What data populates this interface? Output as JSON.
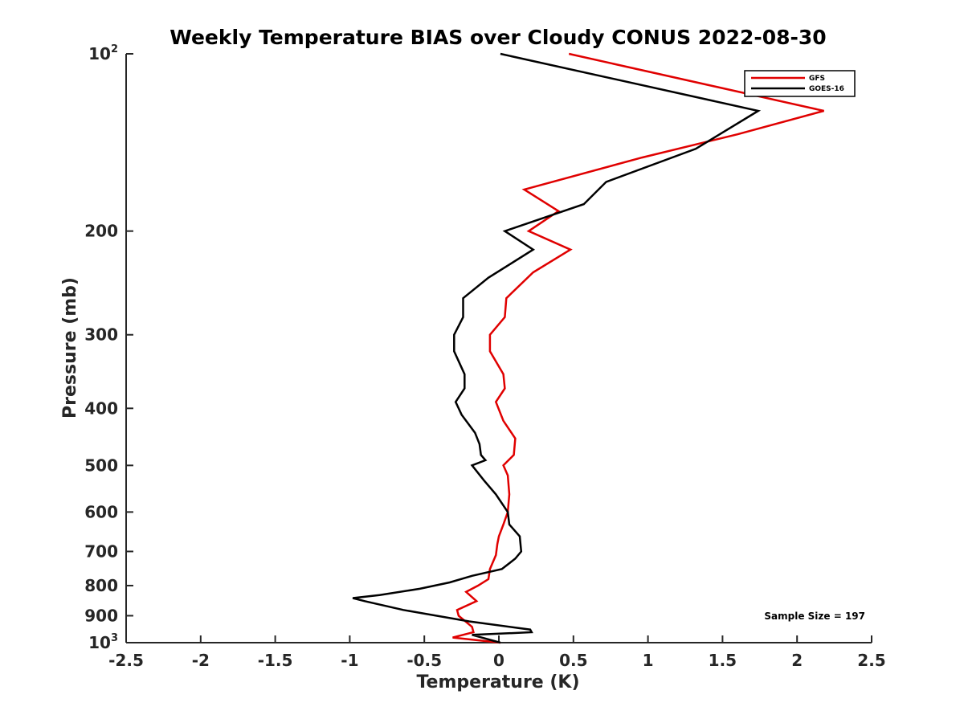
{
  "chart_data": {
    "type": "line",
    "title": "Weekly Temperature BIAS over Cloudy CONUS 2022-08-30",
    "xlabel": "Temperature (K)",
    "ylabel": "Pressure (mb)",
    "xlim": [
      -2.5,
      2.5
    ],
    "ylim": [
      1000,
      100
    ],
    "y_scale": "log",
    "y_reversed": true,
    "x_ticks": [
      -2.5,
      -2,
      -1.5,
      -1,
      -0.5,
      0,
      0.5,
      1,
      1.5,
      2,
      2.5
    ],
    "x_tick_labels": [
      "-2.5",
      "-2",
      "-1.5",
      "-1",
      "-0.5",
      "0",
      "0.5",
      "1",
      "1.5",
      "2",
      "2.5"
    ],
    "y_ticks": [
      {
        "value": 100,
        "base": "10",
        "exp": "2"
      },
      {
        "value": 200,
        "label": "200"
      },
      {
        "value": 300,
        "label": "300"
      },
      {
        "value": 400,
        "label": "400"
      },
      {
        "value": 500,
        "label": "500"
      },
      {
        "value": 600,
        "label": "600"
      },
      {
        "value": 700,
        "label": "700"
      },
      {
        "value": 800,
        "label": "800"
      },
      {
        "value": 900,
        "label": "900"
      },
      {
        "value": 1000,
        "base": "10",
        "exp": "3"
      }
    ],
    "grid": false,
    "legend_position": "top-right",
    "annotation": "Sample Size = 197",
    "series": [
      {
        "name": "GFS",
        "color": "#e00000",
        "points": [
          [
            0.47,
            100
          ],
          [
            2.18,
            125
          ],
          [
            1.6,
            137
          ],
          [
            0.96,
            150
          ],
          [
            0.17,
            170
          ],
          [
            0.4,
            185
          ],
          [
            0.2,
            200
          ],
          [
            0.48,
            215
          ],
          [
            0.23,
            235
          ],
          [
            0.05,
            260
          ],
          [
            0.04,
            280
          ],
          [
            -0.06,
            300
          ],
          [
            -0.06,
            320
          ],
          [
            0.03,
            350
          ],
          [
            0.04,
            370
          ],
          [
            -0.02,
            390
          ],
          [
            0.03,
            420
          ],
          [
            0.11,
            450
          ],
          [
            0.1,
            480
          ],
          [
            0.03,
            500
          ],
          [
            0.06,
            520
          ],
          [
            0.07,
            560
          ],
          [
            0.06,
            600
          ],
          [
            0.03,
            630
          ],
          [
            0.0,
            660
          ],
          [
            -0.01,
            680
          ],
          [
            -0.02,
            710
          ],
          [
            -0.06,
            750
          ],
          [
            -0.07,
            780
          ],
          [
            -0.14,
            800
          ],
          [
            -0.22,
            820
          ],
          [
            -0.15,
            850
          ],
          [
            -0.28,
            880
          ],
          [
            -0.27,
            900
          ],
          [
            -0.18,
            940
          ],
          [
            -0.17,
            960
          ],
          [
            -0.31,
            980
          ],
          [
            0.01,
            1000
          ]
        ]
      },
      {
        "name": "GOES-16",
        "color": "#000000",
        "points": [
          [
            0.01,
            100
          ],
          [
            1.74,
            125
          ],
          [
            1.32,
            145
          ],
          [
            0.72,
            165
          ],
          [
            0.57,
            180
          ],
          [
            0.04,
            200
          ],
          [
            0.23,
            215
          ],
          [
            -0.07,
            240
          ],
          [
            -0.24,
            260
          ],
          [
            -0.24,
            280
          ],
          [
            -0.3,
            300
          ],
          [
            -0.3,
            320
          ],
          [
            -0.23,
            350
          ],
          [
            -0.23,
            370
          ],
          [
            -0.29,
            390
          ],
          [
            -0.25,
            410
          ],
          [
            -0.16,
            440
          ],
          [
            -0.13,
            460
          ],
          [
            -0.12,
            480
          ],
          [
            -0.09,
            490
          ],
          [
            -0.18,
            500
          ],
          [
            -0.1,
            530
          ],
          [
            -0.02,
            560
          ],
          [
            0.06,
            600
          ],
          [
            0.07,
            630
          ],
          [
            0.14,
            660
          ],
          [
            0.15,
            700
          ],
          [
            0.11,
            720
          ],
          [
            0.02,
            750
          ],
          [
            -0.18,
            770
          ],
          [
            -0.33,
            790
          ],
          [
            -0.53,
            810
          ],
          [
            -0.8,
            830
          ],
          [
            -0.98,
            840
          ],
          [
            -0.9,
            850
          ],
          [
            -0.64,
            880
          ],
          [
            -0.2,
            920
          ],
          [
            0.21,
            950
          ],
          [
            0.22,
            960
          ],
          [
            -0.18,
            970
          ],
          [
            0.01,
            1000
          ]
        ]
      }
    ]
  }
}
